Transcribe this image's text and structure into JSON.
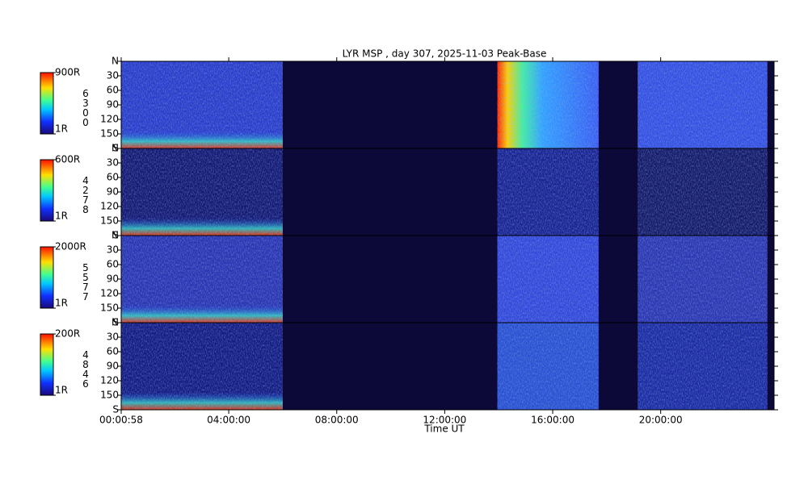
{
  "chart_data": {
    "type": "keogram",
    "title": "LYR MSP , day 307, 2025-11-03 Peak-Base",
    "x_label": "Time UT",
    "xlim": [
      0.0161,
      24.2
    ],
    "xticks": [
      {
        "value": 0.0161,
        "label": "00:00:58"
      },
      {
        "value": 4,
        "label": "04:00:00"
      },
      {
        "value": 8,
        "label": "08:00:00"
      },
      {
        "value": 12,
        "label": "12:00:00"
      },
      {
        "value": 16,
        "label": "16:00:00"
      },
      {
        "value": 20,
        "label": "20:00:00"
      }
    ],
    "ylim": [
      0,
      180
    ],
    "yticks": [
      {
        "value": 0,
        "label": "N"
      },
      30,
      60,
      90,
      120,
      150,
      {
        "value": 180,
        "label": "S"
      }
    ],
    "data_intervals": [
      [
        0.0161,
        6.0
      ],
      [
        13.95,
        17.7
      ],
      [
        19.15,
        23.95
      ]
    ],
    "panels": [
      {
        "wavelength": "6300",
        "clim_ticks": [
          {
            "value": 1,
            "label": "1R"
          },
          {
            "value": 900,
            "label": "900R"
          }
        ]
      },
      {
        "wavelength": "4278",
        "clim_ticks": [
          {
            "value": 1,
            "label": "1R"
          },
          {
            "value": 600,
            "label": "600R"
          }
        ]
      },
      {
        "wavelength": "5577",
        "clim_ticks": [
          {
            "value": 1,
            "label": "1R"
          },
          {
            "value": 2000,
            "label": "2000R"
          }
        ]
      },
      {
        "wavelength": "4846",
        "clim_ticks": [
          {
            "value": 1,
            "label": "1R"
          },
          {
            "value": 200,
            "label": "200R"
          }
        ]
      }
    ]
  }
}
